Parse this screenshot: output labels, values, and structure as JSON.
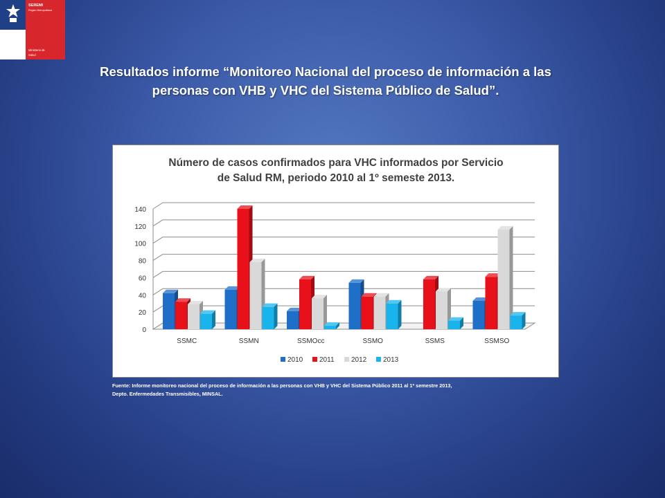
{
  "logo": {
    "line1": "SEREMI",
    "line2": "Región Metropolitana",
    "line3": "Ministerio de",
    "line4": "Salud"
  },
  "slide": {
    "title_line1": "Resultados informe “Monitoreo Nacional del proceso de información a las",
    "title_line2": "personas con VHB y VHC del Sistema Público de Salud”.",
    "source_line1": "Fuente: Informe monitoreo nacional del proceso de información a las personas con VHB y VHC del Sistema Público 2011 al 1º semestre 2013,",
    "source_line2": "Depto. Enfermedades Transmisibles, MINSAL."
  },
  "chart_data": {
    "type": "bar",
    "title_line1": "Número de casos confirmados para VHC informados por Servicio",
    "title_line2": "de Salud RM, periodo 2010 al 1º semeste 2013.",
    "categories": [
      "SSMC",
      "SSMN",
      "SSMOcc",
      "SSMO",
      "SSMS",
      "SSMSO"
    ],
    "series": [
      {
        "name": "2010",
        "color": "#1f6fc8",
        "values": [
          42,
          46,
          21,
          54,
          0,
          33
        ]
      },
      {
        "name": "2011",
        "color": "#e8111a",
        "values": [
          32,
          140,
          58,
          38,
          58,
          61
        ]
      },
      {
        "name": "2012",
        "color": "#d9d9d9",
        "values": [
          29,
          78,
          36,
          38,
          44,
          116
        ]
      },
      {
        "name": "2013",
        "color": "#19b4ec",
        "values": [
          18,
          26,
          4,
          30,
          10,
          16
        ]
      }
    ],
    "ylim": [
      0,
      140
    ],
    "yticks": [
      0,
      20,
      40,
      60,
      80,
      100,
      120,
      140
    ],
    "legend_position": "bottom",
    "grid": true,
    "style": "3d-bar"
  }
}
